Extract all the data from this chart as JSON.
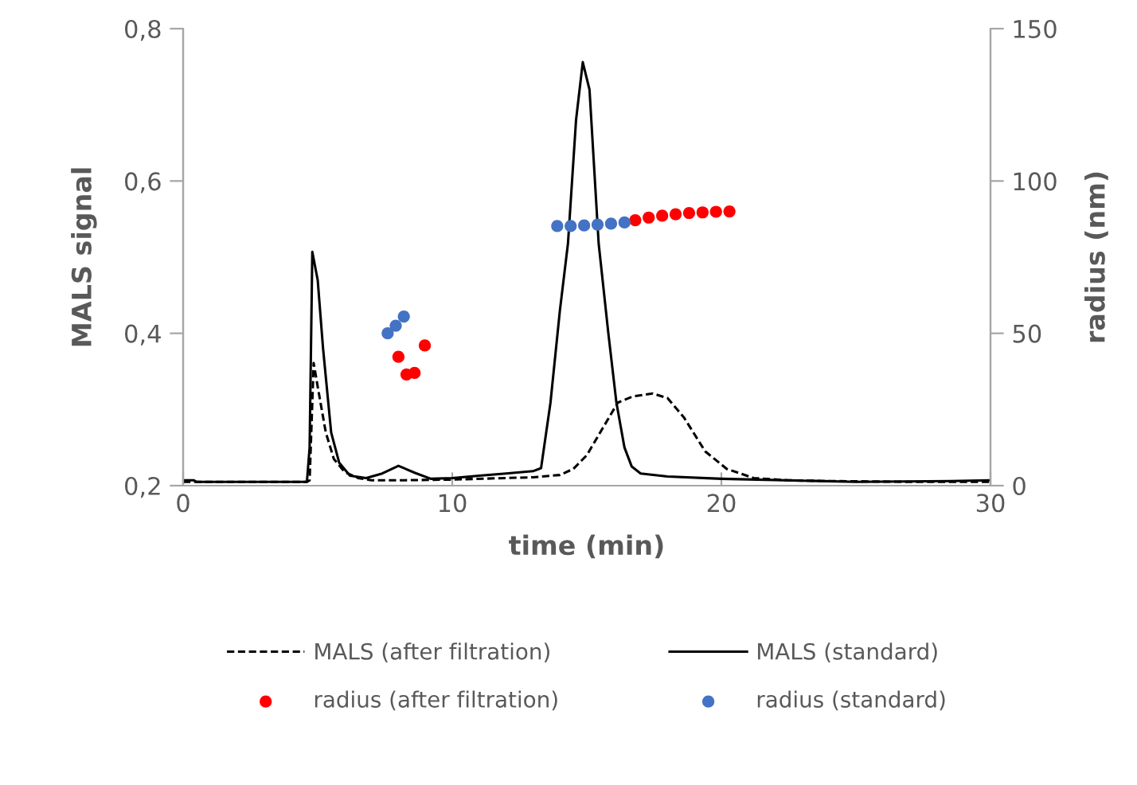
{
  "chart_data": {
    "type": "line",
    "xlabel": "time (min)",
    "ylabel": "MALS signal",
    "y2label": "radius (nm)",
    "xlim": [
      0,
      30
    ],
    "xticks": [
      0,
      10,
      20,
      30
    ],
    "ylim": [
      0.2,
      0.8
    ],
    "yticks": [
      {
        "value": 0.2,
        "label": "0,2"
      },
      {
        "value": 0.4,
        "label": "0,4"
      },
      {
        "value": 0.6,
        "label": "0,6"
      },
      {
        "value": 0.8,
        "label": "0,8"
      }
    ],
    "y2lim": [
      0,
      150
    ],
    "y2ticks": [
      0,
      50,
      100,
      150
    ],
    "grid": false,
    "legend": "bottom",
    "series": [
      {
        "name": "MALS (after filtration)",
        "line_style": "dashed",
        "marker": "none",
        "color": "#000000",
        "x": [
          0,
          4.6,
          4.7,
          4.85,
          5.0,
          5.3,
          5.6,
          6.0,
          6.5,
          7.0,
          8.0,
          10.0,
          12.0,
          13.0,
          14.0,
          14.5,
          15.0,
          15.5,
          16.15,
          16.7,
          17.45,
          18.0,
          18.6,
          19.4,
          20.2,
          21.2,
          22.5,
          24.0,
          27.0,
          30.0
        ],
        "values": [
          0.205,
          0.205,
          0.207,
          0.361,
          0.33,
          0.27,
          0.235,
          0.218,
          0.21,
          0.207,
          0.207,
          0.208,
          0.21,
          0.211,
          0.214,
          0.222,
          0.24,
          0.27,
          0.309,
          0.317,
          0.321,
          0.315,
          0.29,
          0.245,
          0.222,
          0.21,
          0.207,
          0.206,
          0.205,
          0.205
        ]
      },
      {
        "name": "MALS (standard)",
        "line_style": "solid",
        "marker": "none",
        "color": "#000000",
        "x": [
          0,
          0.4,
          0.5,
          4.6,
          4.7,
          4.8,
          5.0,
          5.2,
          5.5,
          5.8,
          6.2,
          6.8,
          7.4,
          8.0,
          8.6,
          9.2,
          10.0,
          11.0,
          12.0,
          13.0,
          13.3,
          13.65,
          14.0,
          14.3,
          14.6,
          14.85,
          15.1,
          15.44,
          15.8,
          16.1,
          16.4,
          16.67,
          17.0,
          18.0,
          20.0,
          25.0,
          28.5,
          30.0
        ],
        "values": [
          0.207,
          0.207,
          0.205,
          0.205,
          0.25,
          0.507,
          0.47,
          0.38,
          0.27,
          0.23,
          0.213,
          0.21,
          0.216,
          0.226,
          0.217,
          0.209,
          0.21,
          0.213,
          0.216,
          0.219,
          0.223,
          0.309,
          0.43,
          0.518,
          0.68,
          0.756,
          0.72,
          0.518,
          0.4,
          0.309,
          0.25,
          0.225,
          0.216,
          0.212,
          0.209,
          0.205,
          0.206,
          0.207
        ]
      },
      {
        "name": "radius (after filtration)",
        "type": "scatter",
        "axis": "y2",
        "marker": "circle",
        "color": "#ff0000",
        "x": [
          8.0,
          8.3,
          8.6,
          8.98,
          16.8,
          17.3,
          17.8,
          18.3,
          18.8,
          19.3,
          19.8,
          20.3
        ],
        "values": [
          42.3,
          36.5,
          37,
          46,
          87.1,
          88,
          88.6,
          89.1,
          89.5,
          89.7,
          89.9,
          90
        ]
      },
      {
        "name": "radius (standard)",
        "type": "scatter",
        "axis": "y2",
        "marker": "circle",
        "color": "#4472c4",
        "x": [
          7.6,
          7.9,
          8.2,
          13.9,
          14.4,
          14.9,
          15.4,
          15.9,
          16.4
        ],
        "values": [
          50,
          52.5,
          55.5,
          85.2,
          85.2,
          85.4,
          85.7,
          86,
          86.4
        ]
      }
    ]
  }
}
